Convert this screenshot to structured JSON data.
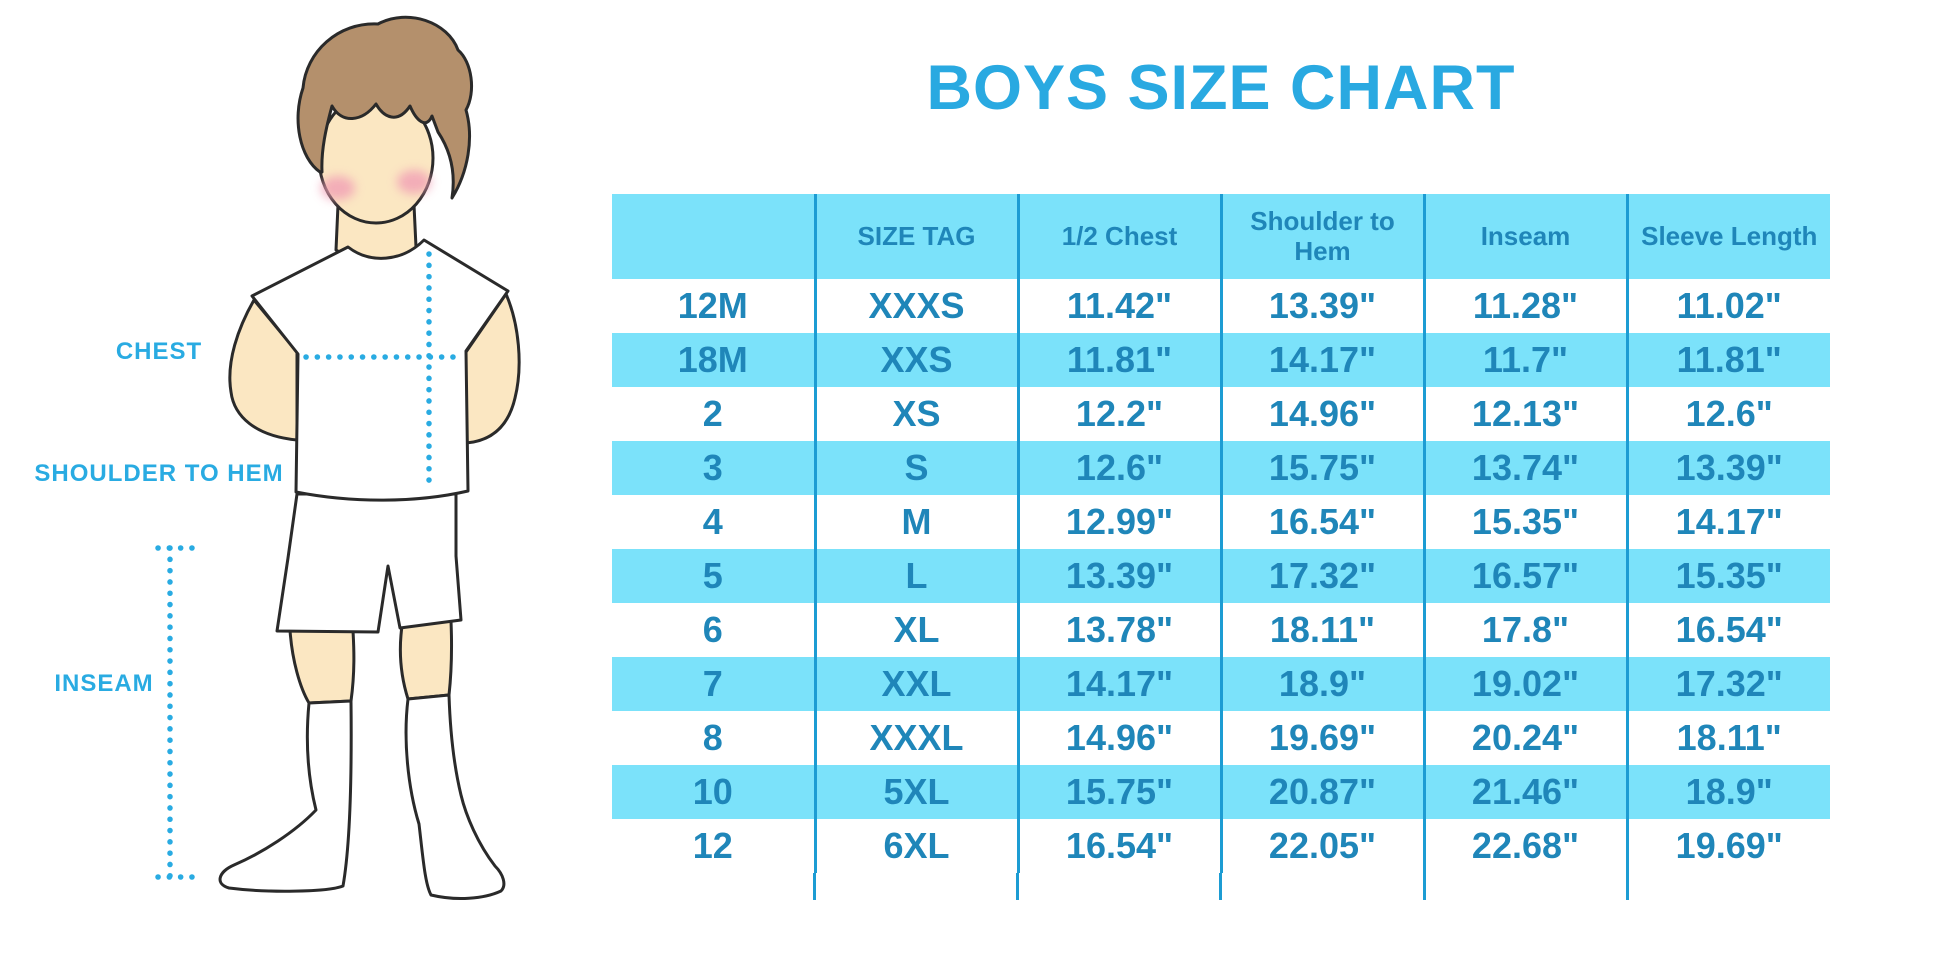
{
  "title": "BOYS SIZE CHART",
  "figure": {
    "labels": {
      "chest": "CHEST",
      "shoulder_to_hem": "SHOULDER TO HEM",
      "inseam": "INSEAM"
    }
  },
  "chart_data": {
    "type": "table",
    "title": "BOYS SIZE CHART",
    "columns": [
      "",
      "SIZE TAG",
      "1/2 Chest",
      "Shoulder to Hem",
      "Inseam",
      "Sleeve Length"
    ],
    "rows": [
      [
        "12M",
        "XXXS",
        "11.42\"",
        "13.39\"",
        "11.28\"",
        "11.02\""
      ],
      [
        "18M",
        "XXS",
        "11.81\"",
        "14.17\"",
        "11.7\"",
        "11.81\""
      ],
      [
        "2",
        "XS",
        "12.2\"",
        "14.96\"",
        "12.13\"",
        "12.6\""
      ],
      [
        "3",
        "S",
        "12.6\"",
        "15.75\"",
        "13.74\"",
        "13.39\""
      ],
      [
        "4",
        "M",
        "12.99\"",
        "16.54\"",
        "15.35\"",
        "14.17\""
      ],
      [
        "5",
        "L",
        "13.39\"",
        "17.32\"",
        "16.57\"",
        "15.35\""
      ],
      [
        "6",
        "XL",
        "13.78\"",
        "18.11\"",
        "17.8\"",
        "16.54\""
      ],
      [
        "7",
        "XXL",
        "14.17\"",
        "18.9\"",
        "19.02\"",
        "17.32\""
      ],
      [
        "8",
        "XXXL",
        "14.96\"",
        "19.69\"",
        "20.24\"",
        "18.11\""
      ],
      [
        "10",
        "5XL",
        "15.75\"",
        "20.87\"",
        "21.46\"",
        "18.9\""
      ],
      [
        "12",
        "6XL",
        "16.54\"",
        "22.05\"",
        "22.68\"",
        "19.69\""
      ]
    ],
    "layout": {
      "banding": "alternate rows highlighted",
      "gridlines": "vertical column separators only"
    }
  },
  "colors": {
    "band": "#7BE2FA",
    "celltext": "#1F86B9",
    "line": "#1C9CD3",
    "title": "#29A9E1",
    "label": "#29ABE2",
    "skin": "#FBE7C2",
    "hair": "#B4906C",
    "outline": "#2A2A2A",
    "blush": "#F19FB5"
  }
}
